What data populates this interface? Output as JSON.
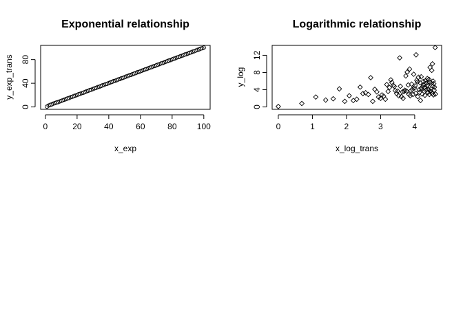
{
  "chart_data": [
    {
      "type": "scatter",
      "title": "Exponential relationship",
      "xlabel": "x_exp",
      "ylabel": "y_exp_trans",
      "xlim": [
        -3,
        104
      ],
      "ylim": [
        -4,
        104
      ],
      "xticks": [
        0,
        20,
        40,
        60,
        80,
        100
      ],
      "yticks": [
        0,
        40,
        80
      ],
      "grid": false,
      "marker": "circle",
      "series": [
        {
          "x": [
            1,
            2,
            3,
            4,
            5,
            6,
            7,
            8,
            9,
            10,
            11,
            12,
            13,
            14,
            15,
            16,
            17,
            18,
            19,
            20,
            21,
            22,
            23,
            24,
            25,
            26,
            27,
            28,
            29,
            30,
            31,
            32,
            33,
            34,
            35,
            36,
            37,
            38,
            39,
            40,
            41,
            42,
            43,
            44,
            45,
            46,
            47,
            48,
            49,
            50,
            51,
            52,
            53,
            54,
            55,
            56,
            57,
            58,
            59,
            60,
            61,
            62,
            63,
            64,
            65,
            66,
            67,
            68,
            69,
            70,
            71,
            72,
            73,
            74,
            75,
            76,
            77,
            78,
            79,
            80,
            81,
            82,
            83,
            84,
            85,
            86,
            87,
            88,
            89,
            90,
            91,
            92,
            93,
            94,
            95,
            96,
            97,
            98,
            99,
            100
          ],
          "y": [
            0.6,
            2.4,
            3.5,
            4.3,
            5.6,
            6.4,
            7.5,
            8.1,
            9.3,
            10.2,
            11.4,
            12.3,
            13.2,
            14.4,
            15.1,
            16.5,
            17.2,
            18.4,
            19.3,
            20.1,
            21.5,
            22.2,
            23.4,
            24.1,
            25.3,
            26.4,
            27.2,
            28.5,
            29.1,
            30.3,
            31.4,
            32.2,
            33.5,
            34.1,
            35.3,
            36.4,
            37.2,
            38.5,
            39.1,
            40.3,
            41.4,
            42.2,
            43.5,
            44.1,
            45.3,
            46.4,
            47.2,
            48.5,
            49.1,
            50.3,
            51.4,
            52.2,
            53.5,
            54.1,
            55.3,
            56.4,
            57.2,
            58.5,
            59.1,
            60.3,
            61.4,
            62.2,
            63.5,
            64.1,
            65.3,
            66.4,
            67.2,
            68.5,
            69.1,
            70.3,
            71.4,
            72.2,
            73.5,
            74.1,
            75.3,
            76.4,
            77.2,
            78.5,
            79.1,
            80.3,
            81.4,
            82.2,
            83.5,
            84.1,
            85.3,
            86.4,
            87.2,
            88.5,
            89.1,
            90.3,
            91.4,
            92.2,
            93.5,
            94.1,
            95.3,
            96.4,
            97.2,
            98.5,
            99.1,
            100.2
          ]
        }
      ]
    },
    {
      "type": "scatter",
      "title": "Logarithmic relationship",
      "xlabel": "x_log_trans",
      "ylabel": "y_log",
      "xlim": [
        -0.18,
        4.79
      ],
      "ylim": [
        -0.55,
        14.3
      ],
      "xticks": [
        0,
        1,
        2,
        3,
        4
      ],
      "yticks": [
        0,
        4,
        8,
        12
      ],
      "grid": false,
      "marker": "diamond",
      "series": [
        {
          "x": [
            0,
            0.69,
            1.1,
            1.39,
            1.61,
            1.79,
            1.95,
            2.08,
            2.2,
            2.3,
            2.4,
            2.48,
            2.56,
            2.64,
            2.71,
            2.77,
            2.83,
            2.89,
            2.94,
            3.0,
            3.04,
            3.09,
            3.14,
            3.18,
            3.22,
            3.26,
            3.3,
            3.33,
            3.37,
            3.4,
            3.43,
            3.47,
            3.5,
            3.53,
            3.56,
            3.58,
            3.61,
            3.64,
            3.66,
            3.69,
            3.71,
            3.74,
            3.76,
            3.78,
            3.81,
            3.83,
            3.85,
            3.87,
            3.89,
            3.91,
            3.93,
            3.95,
            3.97,
            3.99,
            4.01,
            4.03,
            4.04,
            4.06,
            4.08,
            4.09,
            4.11,
            4.13,
            4.14,
            4.16,
            4.17,
            4.19,
            4.2,
            4.22,
            4.23,
            4.25,
            4.26,
            4.28,
            4.29,
            4.3,
            4.32,
            4.33,
            4.34,
            4.36,
            4.37,
            4.38,
            4.39,
            4.41,
            4.42,
            4.43,
            4.44,
            4.45,
            4.47,
            4.48,
            4.49,
            4.5,
            4.51,
            4.52,
            4.53,
            4.54,
            4.55,
            4.56,
            4.57,
            4.58,
            4.6,
            4.61
          ],
          "y": [
            0.1,
            0.8,
            2.3,
            1.6,
            1.9,
            4.2,
            1.3,
            2.6,
            1.5,
            1.8,
            4.6,
            3.1,
            3.3,
            2.9,
            6.8,
            1.3,
            4.1,
            3.5,
            2.3,
            2.0,
            2.8,
            2.5,
            1.8,
            5.2,
            3.6,
            4.5,
            6.3,
            5.7,
            5.0,
            4.8,
            3.8,
            3.1,
            3.7,
            2.6,
            11.4,
            4.8,
            2.4,
            3.5,
            2.0,
            3.6,
            3.9,
            7.2,
            3.7,
            8.1,
            5.1,
            2.9,
            8.8,
            2.6,
            3.8,
            5.3,
            4.1,
            2.9,
            7.6,
            4.4,
            4.9,
            3.2,
            12.1,
            6.2,
            5.8,
            2.4,
            6.9,
            4.0,
            3.4,
            5.6,
            1.5,
            7.0,
            4.3,
            3.0,
            4.7,
            5.9,
            5.2,
            3.6,
            4.5,
            2.7,
            6.1,
            3.9,
            5.5,
            4.9,
            6.6,
            5.1,
            3.4,
            4.0,
            6.4,
            2.9,
            5.8,
            9.2,
            3.7,
            4.2,
            5.5,
            8.5,
            3.1,
            10.0,
            4.8,
            6.0,
            2.8,
            5.4,
            3.9,
            4.6,
            13.8,
            3.0
          ]
        }
      ]
    }
  ]
}
